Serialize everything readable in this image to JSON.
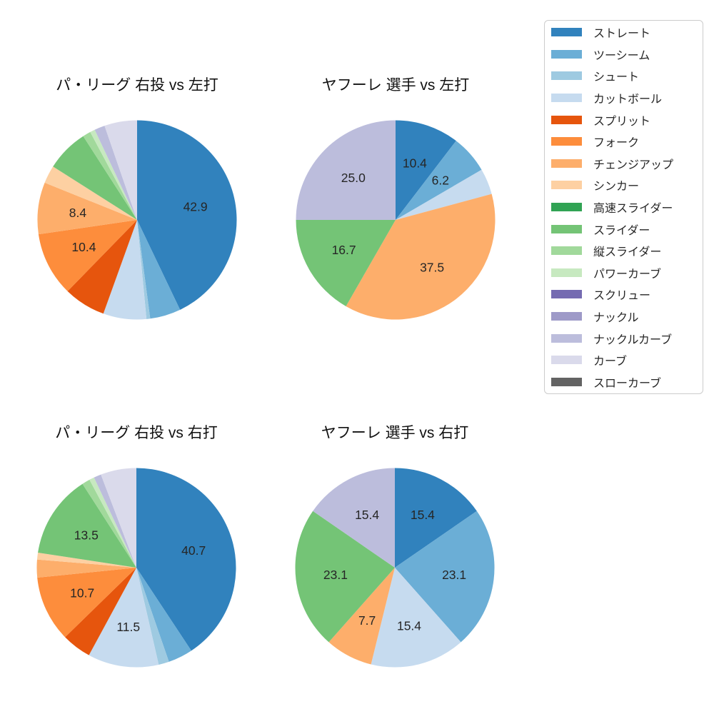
{
  "page": {
    "background_color": "#ffffff"
  },
  "palette": {
    "ストレート": "#3182bd",
    "ツーシーム": "#6baed6",
    "シュート": "#9ecae1",
    "カットボール": "#c6dbef",
    "スプリット": "#e6550d",
    "フォーク": "#fd8d3c",
    "チェンジアップ": "#fdae6b",
    "シンカー": "#fdd0a2",
    "高速スライダー": "#31a354",
    "スライダー": "#74c476",
    "縦スライダー": "#a1d99b",
    "パワーカーブ": "#c7e9c0",
    "スクリュー": "#756bb1",
    "ナックル": "#9e9ac8",
    "ナックルカーブ": "#bcbddc",
    "カーブ": "#dadaeb",
    "スローカーブ": "#636363"
  },
  "legend": {
    "position": "upper right, outside charts",
    "border_color": "#cccccc",
    "items": [
      "ストレート",
      "ツーシーム",
      "シュート",
      "カットボール",
      "スプリット",
      "フォーク",
      "チェンジアップ",
      "シンカー",
      "高速スライダー",
      "スライダー",
      "縦スライダー",
      "パワーカーブ",
      "スクリュー",
      "ナックル",
      "ナックルカーブ",
      "カーブ",
      "スローカーブ"
    ]
  },
  "chart_data": [
    {
      "type": "pie",
      "title": "パ・リーグ 右投 vs 左打",
      "start_angle": "12 o'clock",
      "direction": "clockwise",
      "label_distance": 0.6,
      "labels_shown_only_for_large_slices": true,
      "slices": [
        {
          "category": "ストレート",
          "value": 42.9,
          "label": "42.9"
        },
        {
          "category": "ツーシーム",
          "value": 5.0,
          "label": ""
        },
        {
          "category": "シュート",
          "value": 0.6,
          "label": ""
        },
        {
          "category": "カットボール",
          "value": 7.0,
          "label": ""
        },
        {
          "category": "スプリット",
          "value": 6.8,
          "label": ""
        },
        {
          "category": "フォーク",
          "value": 10.4,
          "label": "10.4"
        },
        {
          "category": "チェンジアップ",
          "value": 8.4,
          "label": "8.4"
        },
        {
          "category": "シンカー",
          "value": 2.9,
          "label": ""
        },
        {
          "category": "スライダー",
          "value": 6.9,
          "label": ""
        },
        {
          "category": "縦スライダー",
          "value": 1.3,
          "label": ""
        },
        {
          "category": "パワーカーブ",
          "value": 0.8,
          "label": ""
        },
        {
          "category": "ナックルカーブ",
          "value": 1.7,
          "label": ""
        },
        {
          "category": "カーブ",
          "value": 5.3,
          "label": ""
        }
      ]
    },
    {
      "type": "pie",
      "title": "ヤフーレ 選手 vs 左打",
      "start_angle": "12 o'clock",
      "direction": "clockwise",
      "label_distance": 0.6,
      "labels_shown_only_for_large_slices": true,
      "slices": [
        {
          "category": "ストレート",
          "value": 10.4,
          "label": "10.4"
        },
        {
          "category": "ツーシーム",
          "value": 6.2,
          "label": "6.2"
        },
        {
          "category": "カットボール",
          "value": 4.2,
          "label": ""
        },
        {
          "category": "チェンジアップ",
          "value": 37.5,
          "label": "37.5"
        },
        {
          "category": "スライダー",
          "value": 16.7,
          "label": "16.7"
        },
        {
          "category": "ナックルカーブ",
          "value": 25.0,
          "label": "25.0"
        }
      ]
    },
    {
      "type": "pie",
      "title": "パ・リーグ 右投 vs 右打",
      "start_angle": "12 o'clock",
      "direction": "clockwise",
      "label_distance": 0.6,
      "labels_shown_only_for_large_slices": true,
      "slices": [
        {
          "category": "ストレート",
          "value": 40.7,
          "label": "40.7"
        },
        {
          "category": "ツーシーム",
          "value": 4.0,
          "label": ""
        },
        {
          "category": "シュート",
          "value": 1.7,
          "label": ""
        },
        {
          "category": "カットボール",
          "value": 11.5,
          "label": "11.5"
        },
        {
          "category": "スプリット",
          "value": 4.8,
          "label": ""
        },
        {
          "category": "フォーク",
          "value": 10.7,
          "label": "10.7"
        },
        {
          "category": "チェンジアップ",
          "value": 2.9,
          "label": ""
        },
        {
          "category": "シンカー",
          "value": 1.1,
          "label": ""
        },
        {
          "category": "スライダー",
          "value": 13.5,
          "label": "13.5"
        },
        {
          "category": "縦スライダー",
          "value": 1.3,
          "label": ""
        },
        {
          "category": "パワーカーブ",
          "value": 0.8,
          "label": ""
        },
        {
          "category": "ナックルカーブ",
          "value": 1.2,
          "label": ""
        },
        {
          "category": "カーブ",
          "value": 5.8,
          "label": ""
        }
      ]
    },
    {
      "type": "pie",
      "title": "ヤフーレ 選手 vs 右打",
      "start_angle": "12 o'clock",
      "direction": "clockwise",
      "label_distance": 0.6,
      "labels_shown_only_for_large_slices": true,
      "slices": [
        {
          "category": "ストレート",
          "value": 15.4,
          "label": "15.4"
        },
        {
          "category": "ツーシーム",
          "value": 23.1,
          "label": "23.1"
        },
        {
          "category": "カットボール",
          "value": 15.4,
          "label": "15.4"
        },
        {
          "category": "チェンジアップ",
          "value": 7.7,
          "label": "7.7"
        },
        {
          "category": "スライダー",
          "value": 23.1,
          "label": "23.1"
        },
        {
          "category": "ナックルカーブ",
          "value": 15.4,
          "label": "15.4"
        }
      ]
    }
  ]
}
